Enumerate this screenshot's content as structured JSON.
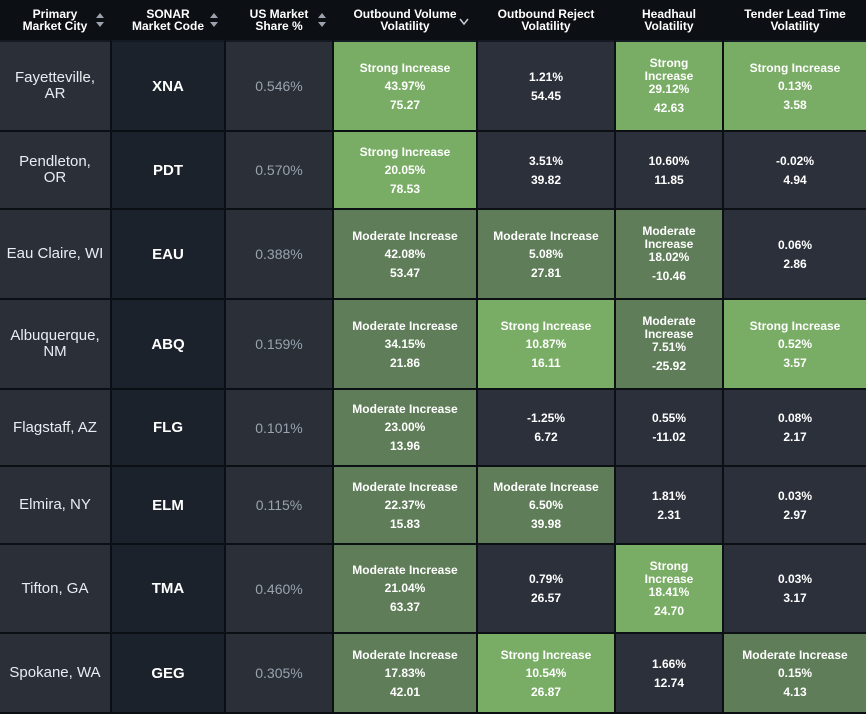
{
  "columns": [
    "Primary\nMarket City",
    "SONAR\nMarket Code",
    "US Market\nShare %",
    "Outbound Volume\nVolatility",
    "Outbound Reject\nVolatility",
    "Headhaul\nVolatility",
    "Tender Lead Time\nVolatility"
  ],
  "rows": [
    {
      "city": "Fayetteville,\nAR",
      "code": "XNA",
      "share": "0.546%",
      "obv": {
        "label": "Strong Increase",
        "v1": "43.97%",
        "v2": "75.27",
        "level": "strong"
      },
      "orv": {
        "label": "",
        "v1": "1.21%",
        "v2": "54.45",
        "level": "neutral"
      },
      "hh": {
        "label": "Strong\nIncrease",
        "v1": "29.12%",
        "v2": "42.63",
        "level": "strong"
      },
      "tlt": {
        "label": "Strong Increase",
        "v1": "0.13%",
        "v2": "3.58",
        "level": "strong"
      }
    },
    {
      "city": "Pendleton,\nOR",
      "code": "PDT",
      "share": "0.570%",
      "obv": {
        "label": "Strong Increase",
        "v1": "20.05%",
        "v2": "78.53",
        "level": "strong"
      },
      "orv": {
        "label": "",
        "v1": "3.51%",
        "v2": "39.82",
        "level": "neutral"
      },
      "hh": {
        "label": "",
        "v1": "10.60%",
        "v2": "11.85",
        "level": "neutral"
      },
      "tlt": {
        "label": "",
        "v1": "-0.02%",
        "v2": "4.94",
        "level": "neutral"
      }
    },
    {
      "city": "Eau Claire, WI",
      "code": "EAU",
      "share": "0.388%",
      "obv": {
        "label": "Moderate Increase",
        "v1": "42.08%",
        "v2": "53.47",
        "level": "moderate"
      },
      "orv": {
        "label": "Moderate Increase",
        "v1": "5.08%",
        "v2": "27.81",
        "level": "moderate"
      },
      "hh": {
        "label": "Moderate\nIncrease",
        "v1": "18.02%",
        "v2": "-10.46",
        "level": "moderate"
      },
      "tlt": {
        "label": "",
        "v1": "0.06%",
        "v2": "2.86",
        "level": "neutral"
      }
    },
    {
      "city": "Albuquerque,\nNM",
      "code": "ABQ",
      "share": "0.159%",
      "obv": {
        "label": "Moderate Increase",
        "v1": "34.15%",
        "v2": "21.86",
        "level": "moderate"
      },
      "orv": {
        "label": "Strong Increase",
        "v1": "10.87%",
        "v2": "16.11",
        "level": "strong"
      },
      "hh": {
        "label": "Moderate\nIncrease",
        "v1": "7.51%",
        "v2": "-25.92",
        "level": "moderate"
      },
      "tlt": {
        "label": "Strong Increase",
        "v1": "0.52%",
        "v2": "3.57",
        "level": "strong"
      }
    },
    {
      "city": "Flagstaff, AZ",
      "code": "FLG",
      "share": "0.101%",
      "obv": {
        "label": "Moderate Increase",
        "v1": "23.00%",
        "v2": "13.96",
        "level": "moderate"
      },
      "orv": {
        "label": "",
        "v1": "-1.25%",
        "v2": "6.72",
        "level": "neutral"
      },
      "hh": {
        "label": "",
        "v1": "0.55%",
        "v2": "-11.02",
        "level": "neutral"
      },
      "tlt": {
        "label": "",
        "v1": "0.08%",
        "v2": "2.17",
        "level": "neutral"
      }
    },
    {
      "city": "Elmira, NY",
      "code": "ELM",
      "share": "0.115%",
      "obv": {
        "label": "Moderate Increase",
        "v1": "22.37%",
        "v2": "15.83",
        "level": "moderate"
      },
      "orv": {
        "label": "Moderate Increase",
        "v1": "6.50%",
        "v2": "39.98",
        "level": "moderate"
      },
      "hh": {
        "label": "",
        "v1": "1.81%",
        "v2": "2.31",
        "level": "neutral"
      },
      "tlt": {
        "label": "",
        "v1": "0.03%",
        "v2": "2.97",
        "level": "neutral"
      }
    },
    {
      "city": "Tifton, GA",
      "code": "TMA",
      "share": "0.460%",
      "obv": {
        "label": "Moderate Increase",
        "v1": "21.04%",
        "v2": "63.37",
        "level": "moderate"
      },
      "orv": {
        "label": "",
        "v1": "0.79%",
        "v2": "26.57",
        "level": "neutral"
      },
      "hh": {
        "label": "Strong\nIncrease",
        "v1": "18.41%",
        "v2": "24.70",
        "level": "strong"
      },
      "tlt": {
        "label": "",
        "v1": "0.03%",
        "v2": "3.17",
        "level": "neutral"
      }
    },
    {
      "city": "Spokane, WA",
      "code": "GEG",
      "share": "0.305%",
      "obv": {
        "label": "Moderate Increase",
        "v1": "17.83%",
        "v2": "42.01",
        "level": "moderate"
      },
      "orv": {
        "label": "Strong Increase",
        "v1": "10.54%",
        "v2": "26.87",
        "level": "strong"
      },
      "hh": {
        "label": "",
        "v1": "1.66%",
        "v2": "12.74",
        "level": "neutral"
      },
      "tlt": {
        "label": "Moderate Increase",
        "v1": "0.15%",
        "v2": "4.13",
        "level": "moderate"
      }
    }
  ],
  "colors": {
    "strong": "#79ad65",
    "moderate": "#5f7d58",
    "neutral": "#2b303a",
    "header": "#0c0f14"
  },
  "icons": {
    "sort": "sort-icon",
    "chevron": "chevron-down-icon"
  }
}
